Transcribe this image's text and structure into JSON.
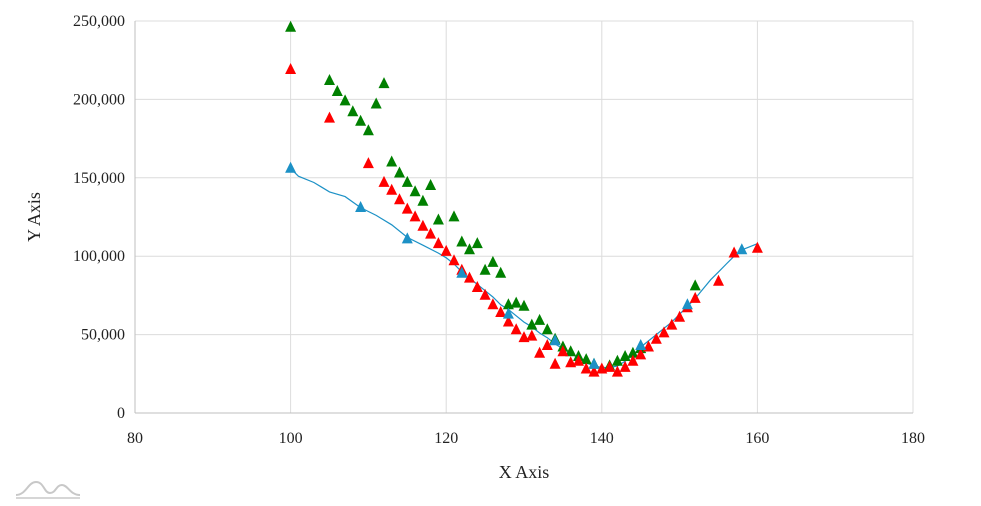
{
  "chart_data": {
    "type": "scatter",
    "xlabel": "X Axis",
    "ylabel": "Y Axis",
    "xlim": [
      80,
      180
    ],
    "ylim": [
      0,
      250000
    ],
    "xticks": [
      80,
      100,
      120,
      140,
      160,
      180
    ],
    "yticks": [
      0,
      50000,
      100000,
      150000,
      200000,
      250000
    ],
    "ytick_labels": [
      "0",
      "50,000",
      "100,000",
      "150,000",
      "200,000",
      "250,000"
    ],
    "grid": true,
    "series": [
      {
        "color": "#008000",
        "marker": "triangle",
        "points": [
          [
            100,
            246000
          ],
          [
            105,
            212000
          ],
          [
            106,
            205000
          ],
          [
            107,
            199000
          ],
          [
            108,
            192000
          ],
          [
            109,
            186000
          ],
          [
            110,
            180000
          ],
          [
            111,
            197000
          ],
          [
            112,
            210000
          ],
          [
            113,
            160000
          ],
          [
            114,
            153000
          ],
          [
            115,
            147000
          ],
          [
            116,
            141000
          ],
          [
            117,
            135000
          ],
          [
            118,
            145000
          ],
          [
            119,
            123000
          ],
          [
            121,
            125000
          ],
          [
            122,
            109000
          ],
          [
            123,
            104000
          ],
          [
            124,
            108000
          ],
          [
            125,
            91000
          ],
          [
            126,
            96000
          ],
          [
            127,
            89000
          ],
          [
            128,
            69000
          ],
          [
            129,
            70000
          ],
          [
            130,
            68000
          ],
          [
            131,
            56000
          ],
          [
            132,
            59000
          ],
          [
            133,
            53000
          ],
          [
            134,
            47000
          ],
          [
            135,
            42000
          ],
          [
            136,
            39000
          ],
          [
            137,
            36000
          ],
          [
            138,
            34000
          ],
          [
            139,
            31000
          ],
          [
            141,
            30000
          ],
          [
            142,
            33000
          ],
          [
            143,
            36000
          ],
          [
            144,
            38000
          ],
          [
            145,
            41000
          ],
          [
            152,
            81000
          ]
        ]
      },
      {
        "color": "#ff0000",
        "marker": "triangle",
        "points": [
          [
            100,
            219000
          ],
          [
            105,
            188000
          ],
          [
            110,
            159000
          ],
          [
            112,
            147000
          ],
          [
            113,
            142000
          ],
          [
            114,
            136000
          ],
          [
            115,
            130000
          ],
          [
            116,
            125000
          ],
          [
            117,
            119000
          ],
          [
            118,
            114000
          ],
          [
            119,
            108000
          ],
          [
            120,
            103000
          ],
          [
            121,
            97000
          ],
          [
            122,
            91000
          ],
          [
            123,
            86000
          ],
          [
            124,
            80000
          ],
          [
            125,
            75000
          ],
          [
            126,
            69000
          ],
          [
            127,
            64000
          ],
          [
            128,
            58000
          ],
          [
            129,
            53000
          ],
          [
            130,
            48000
          ],
          [
            131,
            49000
          ],
          [
            132,
            38000
          ],
          [
            133,
            43000
          ],
          [
            134,
            31000
          ],
          [
            135,
            39000
          ],
          [
            136,
            32000
          ],
          [
            137,
            33000
          ],
          [
            138,
            28000
          ],
          [
            139,
            26000
          ],
          [
            140,
            28000
          ],
          [
            141,
            29000
          ],
          [
            142,
            26000
          ],
          [
            143,
            29000
          ],
          [
            144,
            33000
          ],
          [
            145,
            37000
          ],
          [
            146,
            42000
          ],
          [
            147,
            47000
          ],
          [
            148,
            51000
          ],
          [
            149,
            56000
          ],
          [
            150,
            61000
          ],
          [
            151,
            67000
          ],
          [
            152,
            73000
          ],
          [
            155,
            84000
          ],
          [
            157,
            102000
          ],
          [
            160,
            105000
          ]
        ]
      },
      {
        "color": "#1c91c6",
        "line": [
          [
            100,
            156000
          ],
          [
            101,
            151000
          ],
          [
            103,
            147000
          ],
          [
            104,
            144000
          ],
          [
            105,
            141000
          ],
          [
            107,
            138000
          ],
          [
            109,
            131000
          ],
          [
            111,
            126000
          ],
          [
            113,
            120000
          ],
          [
            115,
            112000
          ],
          [
            117,
            107000
          ],
          [
            119,
            102000
          ],
          [
            120,
            99000
          ],
          [
            121,
            95000
          ],
          [
            122,
            90000
          ],
          [
            123,
            86000
          ],
          [
            124,
            82000
          ],
          [
            125,
            78000
          ],
          [
            126,
            74000
          ],
          [
            127,
            69000
          ],
          [
            128,
            66000
          ],
          [
            129,
            62000
          ],
          [
            130,
            58000
          ],
          [
            131,
            55000
          ],
          [
            132,
            51000
          ],
          [
            133,
            48000
          ],
          [
            134,
            44000
          ],
          [
            135,
            41000
          ],
          [
            136,
            38000
          ],
          [
            137,
            35000
          ],
          [
            138,
            32000
          ],
          [
            139,
            30000
          ],
          [
            140,
            29000
          ],
          [
            141,
            29000
          ],
          [
            142,
            30000
          ],
          [
            143,
            33000
          ],
          [
            144,
            37000
          ],
          [
            145,
            42000
          ],
          [
            146,
            46000
          ],
          [
            147,
            50000
          ],
          [
            148,
            54000
          ],
          [
            149,
            58000
          ],
          [
            150,
            63000
          ],
          [
            151,
            68000
          ],
          [
            152,
            73000
          ],
          [
            153,
            79000
          ],
          [
            154,
            85000
          ],
          [
            155,
            90000
          ],
          [
            156,
            95000
          ],
          [
            157,
            100000
          ],
          [
            158,
            104000
          ],
          [
            159,
            106000
          ],
          [
            160,
            108000
          ]
        ],
        "marker": "triangle",
        "points": [
          [
            100,
            156000
          ],
          [
            109,
            131000
          ],
          [
            115,
            111000
          ],
          [
            122,
            89000
          ],
          [
            128,
            63000
          ],
          [
            134,
            46000
          ],
          [
            139,
            31000
          ],
          [
            145,
            43000
          ],
          [
            151,
            69000
          ],
          [
            158,
            104000
          ]
        ]
      }
    ]
  }
}
